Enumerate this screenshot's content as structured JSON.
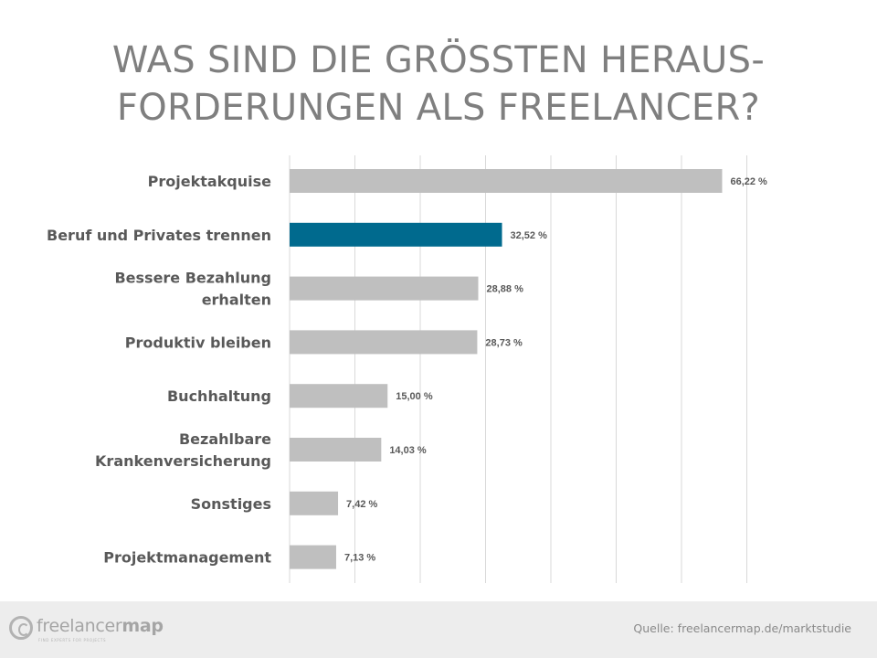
{
  "title": {
    "line1": "WAS SIND DIE GRÖSSTEN HERAUS-",
    "line2": "FORDERUNGEN ALS FREELANCER?"
  },
  "chart_data": {
    "type": "bar",
    "orientation": "horizontal",
    "categories": [
      "Projektakquise",
      "Beruf und Privates trennen",
      "Bessere Bezahlung erhalten",
      "Produktiv bleiben",
      "Buchhaltung",
      "Bezahlbare Krankenversicherung",
      "Sonstiges",
      "Projektmanagement"
    ],
    "category_lines": [
      [
        "Projektakquise"
      ],
      [
        "Beruf und Privates trennen"
      ],
      [
        "Bessere Bezahlung",
        "erhalten"
      ],
      [
        "Produktiv bleiben"
      ],
      [
        "Buchhaltung"
      ],
      [
        "Bezahlbare",
        "Krankenversicherung"
      ],
      [
        "Sonstiges"
      ],
      [
        "Projektmanagement"
      ]
    ],
    "values": [
      66.22,
      32.52,
      28.88,
      28.73,
      15.0,
      14.03,
      7.42,
      7.13
    ],
    "value_labels": [
      "66,22 %",
      "32,52 %",
      "28,88 %",
      "28,73 %",
      "15,00 %",
      "14,03 %",
      "7,42 %",
      "7,13 %"
    ],
    "highlight_index": 1,
    "colors": {
      "default": "#bfbfbf",
      "highlight": "#006a8e",
      "grid": "#d9d9d9",
      "label": "#595959"
    },
    "xlim": [
      0,
      70
    ],
    "grid": true,
    "xlabel": "",
    "ylabel": ""
  },
  "footer": {
    "logo_text_light": "freelancer",
    "logo_text_bold": "map",
    "logo_tagline": "FIND EXPERTS FOR PROJECTS",
    "logo_icon": "freelancermap-logo-icon",
    "source": "Quelle: freelancermap.de/marktstudie"
  }
}
